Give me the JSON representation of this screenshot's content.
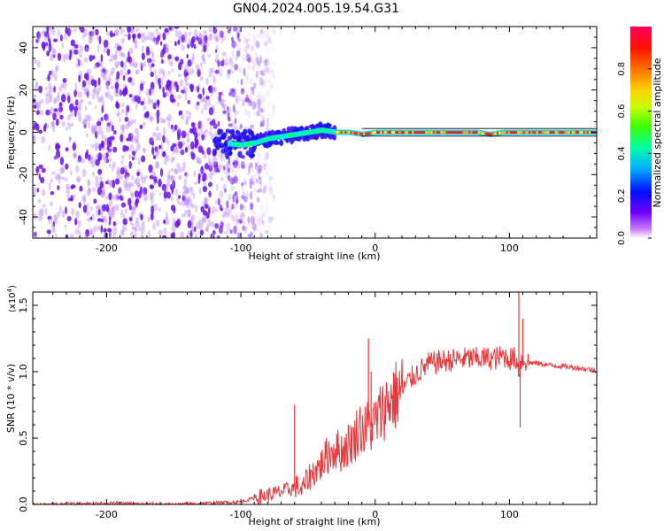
{
  "title": "GN04.2024.005.19.54.G31",
  "colors": {
    "snr_line": "#e8383c",
    "spectrogram_scatter": "#6a1be0",
    "colorbar": [
      "#ff00ff",
      "#5a00ff",
      "#0000ff",
      "#00c8ff",
      "#00ff80",
      "#7fff00",
      "#ffff00",
      "#ff8000",
      "#ff0000",
      "#ff0050"
    ]
  },
  "chart_data": [
    {
      "type": "heatmap",
      "title": "GN04.2024.005.19.54.G31",
      "xlabel": "Height of straight line (km)",
      "ylabel": "Frequency (Hz)",
      "xlim": [
        -255,
        165
      ],
      "ylim": [
        -50,
        50
      ],
      "xticks": [
        -200,
        -100,
        0,
        100
      ],
      "yticks": [
        -40,
        -20,
        0,
        20,
        40
      ],
      "xtick_labels": [
        "-200",
        "-100",
        "0",
        "100"
      ],
      "ytick_labels": [
        "-40",
        "-20",
        "0",
        "20",
        "40"
      ],
      "colorbar": {
        "label": "Normalized spectral amplitude",
        "range": [
          0,
          1
        ],
        "ticks": [
          0.0,
          0.2,
          0.4,
          0.6,
          0.8
        ],
        "tick_labels": [
          "0.0",
          "0.2",
          "0.4",
          "0.6",
          "0.8"
        ]
      },
      "description_series": {
        "noise_region_x": [
          -255,
          -85
        ],
        "ridge": {
          "x": [
            -115,
            -100,
            -90,
            -80,
            -70,
            -60,
            -50,
            -40,
            -30,
            -20,
            -10,
            0,
            25,
            50,
            75,
            85,
            95,
            110,
            130,
            165
          ],
          "y": [
            -5,
            -6,
            -5,
            -3,
            -2,
            -1,
            0,
            1,
            0,
            0,
            -1,
            0,
            0,
            0,
            0,
            -1,
            0,
            0,
            0,
            0
          ]
        }
      }
    },
    {
      "type": "line",
      "xlabel": "Height of straight line (km)",
      "ylabel": "SNR (10 * v/v)",
      "y_multiplier": "(x10",
      "y_multiplier_exp": "4",
      "y_multiplier_close": ")",
      "xlim": [
        -255,
        165
      ],
      "ylim": [
        0,
        1.6
      ],
      "xticks": [
        -200,
        -100,
        0,
        100
      ],
      "yticks": [
        0.0,
        0.5,
        1.0,
        1.5
      ],
      "xtick_labels": [
        "-200",
        "-100",
        "0",
        "100"
      ],
      "ytick_labels": [
        "0.0",
        "0.5",
        "1.0",
        "1.5"
      ],
      "series": [
        {
          "x": [
            -255,
            -200,
            -150,
            -100,
            -90,
            -80,
            -72,
            -62,
            -58,
            -55,
            -50,
            -45,
            -40,
            -35,
            -30,
            -25,
            -20,
            -15,
            -12,
            -8,
            -5,
            -2,
            0,
            5,
            10,
            15,
            20,
            25,
            30,
            35,
            40,
            50,
            60,
            70,
            80,
            90,
            95,
            100,
            105,
            107,
            108,
            110,
            115,
            130,
            150,
            165
          ],
          "y": [
            0.0,
            0.01,
            0.0,
            0.02,
            0.05,
            0.07,
            0.09,
            0.12,
            0.14,
            0.1,
            0.2,
            0.25,
            0.3,
            0.38,
            0.42,
            0.4,
            0.45,
            0.5,
            0.6,
            0.55,
            0.6,
            0.58,
            0.62,
            0.7,
            0.78,
            0.82,
            0.86,
            0.93,
            0.98,
            1.02,
            1.06,
            1.08,
            1.09,
            1.1,
            1.1,
            1.1,
            1.12,
            1.1,
            1.1,
            1.0,
            1.08,
            1.09,
            1.07,
            1.05,
            1.03,
            1.01
          ]
        }
      ],
      "spikes": [
        {
          "x": -60,
          "y": 0.75
        },
        {
          "x": -5,
          "y": 1.25
        },
        {
          "x": -3,
          "y": 1.0
        },
        {
          "x": 107,
          "y": 1.65
        },
        {
          "x": 108,
          "y": 0.58
        },
        {
          "x": 110,
          "y": 1.4
        }
      ]
    }
  ]
}
